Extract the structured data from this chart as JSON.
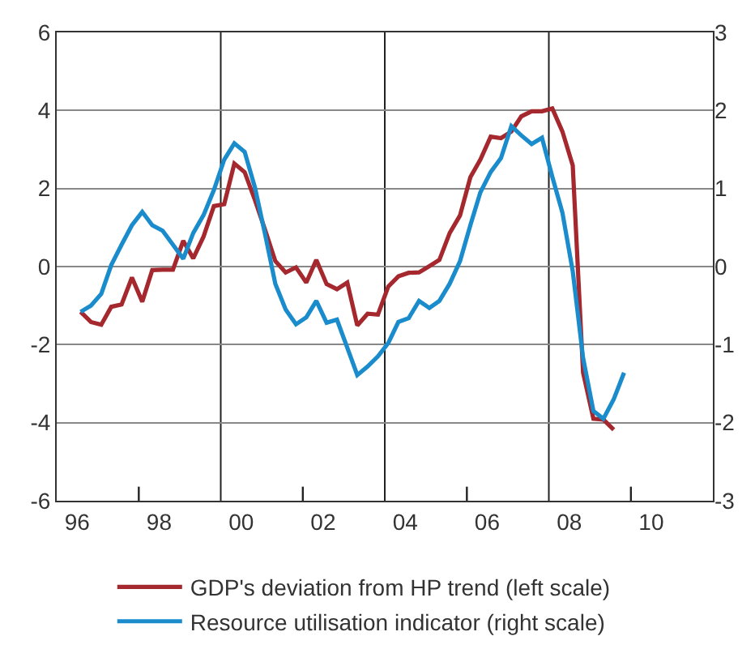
{
  "chart_data": {
    "type": "line",
    "x": [
      "1996-08",
      "1996-11",
      "1997-02",
      "1997-05",
      "1997-08",
      "1997-11",
      "1998-02",
      "1998-05",
      "1998-08",
      "1998-11",
      "1999-02",
      "1999-05",
      "1999-08",
      "1999-11",
      "2000-02",
      "2000-05",
      "2000-08",
      "2000-11",
      "2001-02",
      "2001-05",
      "2001-08",
      "2001-11",
      "2002-02",
      "2002-05",
      "2002-08",
      "2002-11",
      "2003-02",
      "2003-05",
      "2003-08",
      "2003-11",
      "2004-02",
      "2004-05",
      "2004-08",
      "2004-11",
      "2005-02",
      "2005-05",
      "2005-08",
      "2005-11",
      "2006-02",
      "2006-05",
      "2006-08",
      "2006-11",
      "2007-02",
      "2007-05",
      "2007-08",
      "2007-11",
      "2008-02",
      "2008-05",
      "2008-08",
      "2008-11",
      "2009-02",
      "2009-05",
      "2009-08",
      "2009-11"
    ],
    "series": [
      {
        "name": "GDP's deviation from HP trend (left scale)",
        "color": "#a4282e",
        "values": [
          -1.16,
          -1.42,
          -1.49,
          -1.03,
          -0.97,
          -0.28,
          -0.9,
          -0.09,
          -0.08,
          -0.08,
          0.66,
          0.21,
          0.77,
          1.55,
          1.6,
          2.64,
          2.42,
          1.7,
          0.92,
          0.14,
          -0.15,
          -0.02,
          -0.41,
          0.17,
          -0.45,
          -0.58,
          -0.41,
          -1.51,
          -1.21,
          -1.23,
          -0.51,
          -0.25,
          -0.16,
          -0.15,
          0.01,
          0.17,
          0.86,
          1.31,
          2.29,
          2.74,
          3.33,
          3.29,
          3.46,
          3.85,
          3.98,
          3.98,
          4.05,
          3.46,
          2.59,
          -2.72,
          -3.9,
          -3.92,
          -4.18,
          null
        ]
      },
      {
        "name": "Resource utilisation indicator (right scale)",
        "color": "#1a8ccc",
        "axis": "y2",
        "values": [
          -0.58,
          -0.5,
          -0.35,
          0.02,
          0.28,
          0.53,
          0.7,
          0.53,
          0.46,
          0.28,
          0.1,
          0.43,
          0.66,
          0.98,
          1.37,
          1.58,
          1.47,
          1.01,
          0.4,
          -0.22,
          -0.55,
          -0.74,
          -0.65,
          -0.44,
          -0.72,
          -0.68,
          -1.04,
          -1.39,
          -1.28,
          -1.15,
          -0.98,
          -0.71,
          -0.66,
          -0.44,
          -0.53,
          -0.44,
          -0.22,
          0.07,
          0.53,
          0.95,
          1.21,
          1.39,
          1.8,
          1.68,
          1.57,
          1.65,
          1.15,
          0.69,
          -0.06,
          -1.17,
          -1.85,
          -1.95,
          -1.7,
          -1.36
        ]
      }
    ],
    "xlim": [
      "1996-01",
      "2012-01"
    ],
    "xticks": [
      {
        "value": "1996-07",
        "label": "96"
      },
      {
        "value": "1998-07",
        "label": "98"
      },
      {
        "value": "2000-07",
        "label": "00"
      },
      {
        "value": "2002-07",
        "label": "02"
      },
      {
        "value": "2004-07",
        "label": "04"
      },
      {
        "value": "2006-07",
        "label": "06"
      },
      {
        "value": "2008-07",
        "label": "08"
      },
      {
        "value": "2010-07",
        "label": "10"
      },
      {
        "value": "1998-01",
        "label": null
      },
      {
        "value": "2002-01",
        "label": null
      },
      {
        "value": "2006-01",
        "label": null
      },
      {
        "value": "2010-01",
        "label": null
      }
    ],
    "ylim": [
      -6,
      6
    ],
    "yticks": [
      -6,
      -4,
      -2,
      0,
      2,
      4,
      6
    ],
    "y2lim": [
      -3,
      3
    ],
    "y2ticks": [
      -3,
      -2,
      -1,
      0,
      1,
      2,
      3
    ],
    "ref_lines": [
      {
        "axis": "x",
        "value": "2000-01",
        "color": "#222222"
      },
      {
        "axis": "x",
        "value": "2004-01",
        "color": "#222222"
      },
      {
        "axis": "x",
        "value": "2008-01",
        "color": "#222222"
      }
    ],
    "grid": "y",
    "legend": "bottom",
    "marker": "none",
    "line_style": "solid"
  }
}
